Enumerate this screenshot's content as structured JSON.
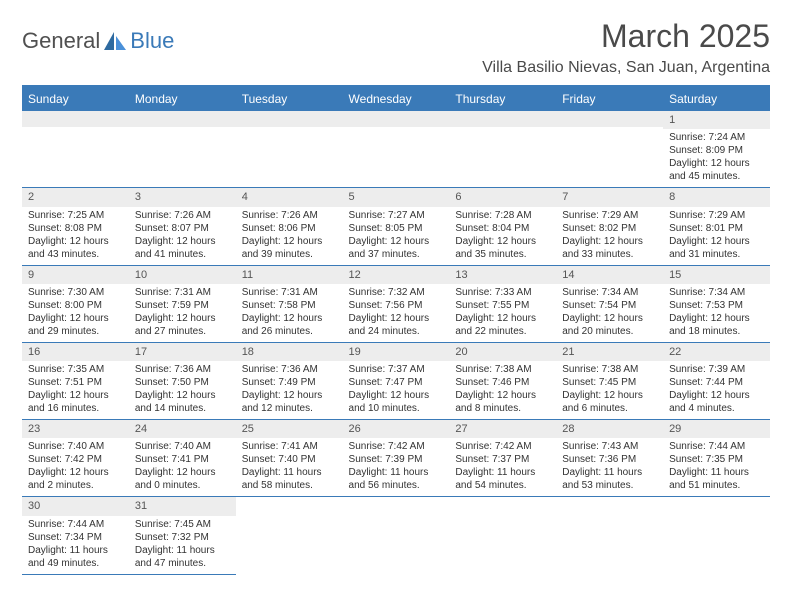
{
  "logo": {
    "text1": "General",
    "text2": "Blue"
  },
  "title": "March 2025",
  "location": "Villa Basilio Nievas, San Juan, Argentina",
  "colors": {
    "accent": "#3a7ab8",
    "header_bg": "#3a7ab8",
    "header_fg": "#ffffff",
    "daynum_bg": "#ededed",
    "border": "#3a7ab8",
    "text": "#333333"
  },
  "weekdays": [
    "Sunday",
    "Monday",
    "Tuesday",
    "Wednesday",
    "Thursday",
    "Friday",
    "Saturday"
  ],
  "weeks": [
    [
      {
        "n": "",
        "sr": "",
        "ss": "",
        "dl1": "",
        "dl2": ""
      },
      {
        "n": "",
        "sr": "",
        "ss": "",
        "dl1": "",
        "dl2": ""
      },
      {
        "n": "",
        "sr": "",
        "ss": "",
        "dl1": "",
        "dl2": ""
      },
      {
        "n": "",
        "sr": "",
        "ss": "",
        "dl1": "",
        "dl2": ""
      },
      {
        "n": "",
        "sr": "",
        "ss": "",
        "dl1": "",
        "dl2": ""
      },
      {
        "n": "",
        "sr": "",
        "ss": "",
        "dl1": "",
        "dl2": ""
      },
      {
        "n": "1",
        "sr": "Sunrise: 7:24 AM",
        "ss": "Sunset: 8:09 PM",
        "dl1": "Daylight: 12 hours",
        "dl2": "and 45 minutes."
      }
    ],
    [
      {
        "n": "2",
        "sr": "Sunrise: 7:25 AM",
        "ss": "Sunset: 8:08 PM",
        "dl1": "Daylight: 12 hours",
        "dl2": "and 43 minutes."
      },
      {
        "n": "3",
        "sr": "Sunrise: 7:26 AM",
        "ss": "Sunset: 8:07 PM",
        "dl1": "Daylight: 12 hours",
        "dl2": "and 41 minutes."
      },
      {
        "n": "4",
        "sr": "Sunrise: 7:26 AM",
        "ss": "Sunset: 8:06 PM",
        "dl1": "Daylight: 12 hours",
        "dl2": "and 39 minutes."
      },
      {
        "n": "5",
        "sr": "Sunrise: 7:27 AM",
        "ss": "Sunset: 8:05 PM",
        "dl1": "Daylight: 12 hours",
        "dl2": "and 37 minutes."
      },
      {
        "n": "6",
        "sr": "Sunrise: 7:28 AM",
        "ss": "Sunset: 8:04 PM",
        "dl1": "Daylight: 12 hours",
        "dl2": "and 35 minutes."
      },
      {
        "n": "7",
        "sr": "Sunrise: 7:29 AM",
        "ss": "Sunset: 8:02 PM",
        "dl1": "Daylight: 12 hours",
        "dl2": "and 33 minutes."
      },
      {
        "n": "8",
        "sr": "Sunrise: 7:29 AM",
        "ss": "Sunset: 8:01 PM",
        "dl1": "Daylight: 12 hours",
        "dl2": "and 31 minutes."
      }
    ],
    [
      {
        "n": "9",
        "sr": "Sunrise: 7:30 AM",
        "ss": "Sunset: 8:00 PM",
        "dl1": "Daylight: 12 hours",
        "dl2": "and 29 minutes."
      },
      {
        "n": "10",
        "sr": "Sunrise: 7:31 AM",
        "ss": "Sunset: 7:59 PM",
        "dl1": "Daylight: 12 hours",
        "dl2": "and 27 minutes."
      },
      {
        "n": "11",
        "sr": "Sunrise: 7:31 AM",
        "ss": "Sunset: 7:58 PM",
        "dl1": "Daylight: 12 hours",
        "dl2": "and 26 minutes."
      },
      {
        "n": "12",
        "sr": "Sunrise: 7:32 AM",
        "ss": "Sunset: 7:56 PM",
        "dl1": "Daylight: 12 hours",
        "dl2": "and 24 minutes."
      },
      {
        "n": "13",
        "sr": "Sunrise: 7:33 AM",
        "ss": "Sunset: 7:55 PM",
        "dl1": "Daylight: 12 hours",
        "dl2": "and 22 minutes."
      },
      {
        "n": "14",
        "sr": "Sunrise: 7:34 AM",
        "ss": "Sunset: 7:54 PM",
        "dl1": "Daylight: 12 hours",
        "dl2": "and 20 minutes."
      },
      {
        "n": "15",
        "sr": "Sunrise: 7:34 AM",
        "ss": "Sunset: 7:53 PM",
        "dl1": "Daylight: 12 hours",
        "dl2": "and 18 minutes."
      }
    ],
    [
      {
        "n": "16",
        "sr": "Sunrise: 7:35 AM",
        "ss": "Sunset: 7:51 PM",
        "dl1": "Daylight: 12 hours",
        "dl2": "and 16 minutes."
      },
      {
        "n": "17",
        "sr": "Sunrise: 7:36 AM",
        "ss": "Sunset: 7:50 PM",
        "dl1": "Daylight: 12 hours",
        "dl2": "and 14 minutes."
      },
      {
        "n": "18",
        "sr": "Sunrise: 7:36 AM",
        "ss": "Sunset: 7:49 PM",
        "dl1": "Daylight: 12 hours",
        "dl2": "and 12 minutes."
      },
      {
        "n": "19",
        "sr": "Sunrise: 7:37 AM",
        "ss": "Sunset: 7:47 PM",
        "dl1": "Daylight: 12 hours",
        "dl2": "and 10 minutes."
      },
      {
        "n": "20",
        "sr": "Sunrise: 7:38 AM",
        "ss": "Sunset: 7:46 PM",
        "dl1": "Daylight: 12 hours",
        "dl2": "and 8 minutes."
      },
      {
        "n": "21",
        "sr": "Sunrise: 7:38 AM",
        "ss": "Sunset: 7:45 PM",
        "dl1": "Daylight: 12 hours",
        "dl2": "and 6 minutes."
      },
      {
        "n": "22",
        "sr": "Sunrise: 7:39 AM",
        "ss": "Sunset: 7:44 PM",
        "dl1": "Daylight: 12 hours",
        "dl2": "and 4 minutes."
      }
    ],
    [
      {
        "n": "23",
        "sr": "Sunrise: 7:40 AM",
        "ss": "Sunset: 7:42 PM",
        "dl1": "Daylight: 12 hours",
        "dl2": "and 2 minutes."
      },
      {
        "n": "24",
        "sr": "Sunrise: 7:40 AM",
        "ss": "Sunset: 7:41 PM",
        "dl1": "Daylight: 12 hours",
        "dl2": "and 0 minutes."
      },
      {
        "n": "25",
        "sr": "Sunrise: 7:41 AM",
        "ss": "Sunset: 7:40 PM",
        "dl1": "Daylight: 11 hours",
        "dl2": "and 58 minutes."
      },
      {
        "n": "26",
        "sr": "Sunrise: 7:42 AM",
        "ss": "Sunset: 7:39 PM",
        "dl1": "Daylight: 11 hours",
        "dl2": "and 56 minutes."
      },
      {
        "n": "27",
        "sr": "Sunrise: 7:42 AM",
        "ss": "Sunset: 7:37 PM",
        "dl1": "Daylight: 11 hours",
        "dl2": "and 54 minutes."
      },
      {
        "n": "28",
        "sr": "Sunrise: 7:43 AM",
        "ss": "Sunset: 7:36 PM",
        "dl1": "Daylight: 11 hours",
        "dl2": "and 53 minutes."
      },
      {
        "n": "29",
        "sr": "Sunrise: 7:44 AM",
        "ss": "Sunset: 7:35 PM",
        "dl1": "Daylight: 11 hours",
        "dl2": "and 51 minutes."
      }
    ],
    [
      {
        "n": "30",
        "sr": "Sunrise: 7:44 AM",
        "ss": "Sunset: 7:34 PM",
        "dl1": "Daylight: 11 hours",
        "dl2": "and 49 minutes."
      },
      {
        "n": "31",
        "sr": "Sunrise: 7:45 AM",
        "ss": "Sunset: 7:32 PM",
        "dl1": "Daylight: 11 hours",
        "dl2": "and 47 minutes."
      },
      {
        "n": "",
        "sr": "",
        "ss": "",
        "dl1": "",
        "dl2": ""
      },
      {
        "n": "",
        "sr": "",
        "ss": "",
        "dl1": "",
        "dl2": ""
      },
      {
        "n": "",
        "sr": "",
        "ss": "",
        "dl1": "",
        "dl2": ""
      },
      {
        "n": "",
        "sr": "",
        "ss": "",
        "dl1": "",
        "dl2": ""
      },
      {
        "n": "",
        "sr": "",
        "ss": "",
        "dl1": "",
        "dl2": ""
      }
    ]
  ]
}
